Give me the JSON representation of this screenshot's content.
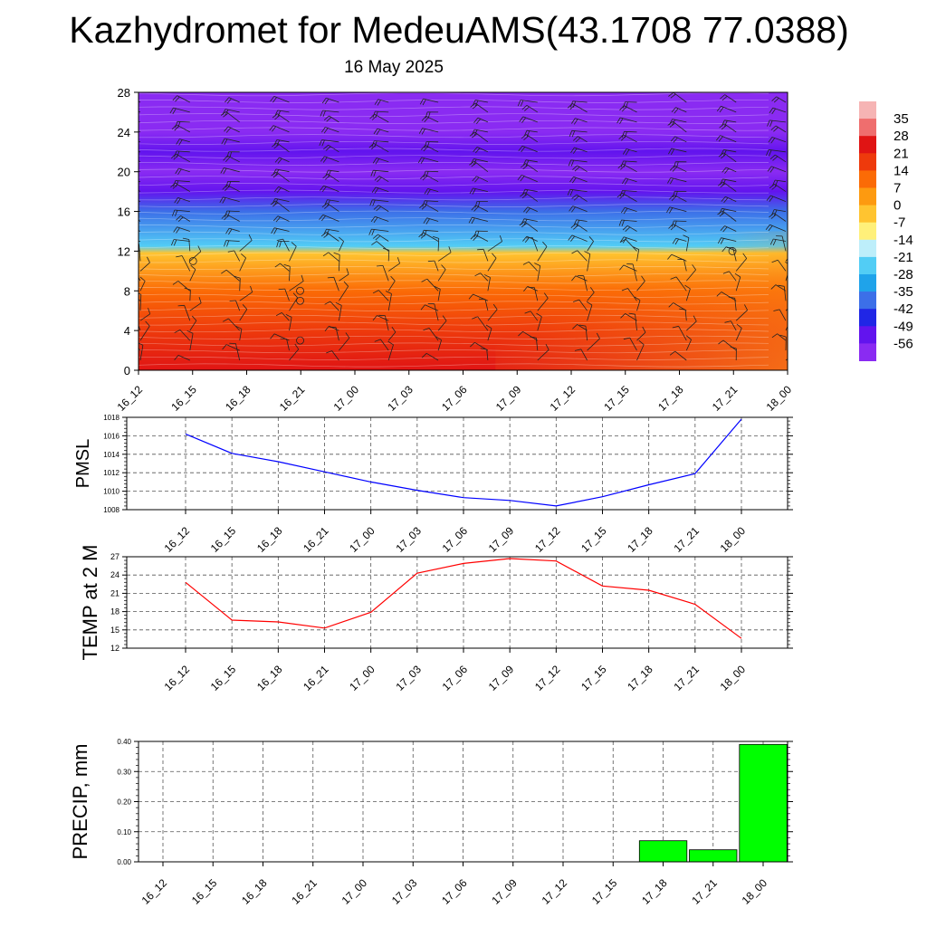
{
  "title": "Kazhydromet for MedeuAMS(43.1708 77.0388)",
  "subtitle": "16 May 2025",
  "time_labels": [
    "16_12",
    "16_15",
    "16_18",
    "16_21",
    "17_00",
    "17_03",
    "17_06",
    "17_09",
    "17_12",
    "17_15",
    "17_18",
    "17_21",
    "18_00"
  ],
  "colorbar": {
    "labels": [
      "35",
      "28",
      "21",
      "14",
      "7",
      "0",
      "-7",
      "-14",
      "-21",
      "-28",
      "-35",
      "-42",
      "-49",
      "-56"
    ],
    "colors": [
      "#f6b4b4",
      "#ef6e6e",
      "#e01414",
      "#ee3a0c",
      "#fb6b06",
      "#fd9a10",
      "#ffc430",
      "#fff07a",
      "#bdeefa",
      "#52cdf5",
      "#1fa3ea",
      "#3c6fe8",
      "#2026e6",
      "#6214ee",
      "#8a2bf2"
    ]
  },
  "chart_data": [
    {
      "type": "heatmap",
      "title": "",
      "xlabel": "",
      "ylabel": "",
      "x": [
        "16_12",
        "16_15",
        "16_18",
        "16_21",
        "17_00",
        "17_03",
        "17_06",
        "17_09",
        "17_12",
        "17_15",
        "17_18",
        "17_21",
        "18_00"
      ],
      "y_ticks": [
        "0",
        "4",
        "8",
        "12",
        "16",
        "20",
        "24",
        "28"
      ],
      "ylim": [
        0,
        28
      ],
      "colorbar_range": [
        -56,
        35
      ],
      "temperature_profile": [
        {
          "level": 0,
          "value": 24
        },
        {
          "level": 4,
          "value": 18
        },
        {
          "level": 8,
          "value": 7
        },
        {
          "level": 11.8,
          "value": -7
        },
        {
          "level": 12.5,
          "value": -21
        },
        {
          "level": 16,
          "value": -35
        },
        {
          "level": 18,
          "value": -49
        },
        {
          "level": 20,
          "value": -56
        },
        {
          "level": 22,
          "value": -49
        },
        {
          "level": 24,
          "value": -60
        },
        {
          "level": 28,
          "value": -60
        }
      ],
      "overlay": "wind barbs"
    },
    {
      "type": "line",
      "title": "",
      "ylabel": "PMSL",
      "categories": [
        "16_12",
        "16_15",
        "16_18",
        "16_21",
        "17_00",
        "17_03",
        "17_06",
        "17_09",
        "17_12",
        "17_15",
        "17_18",
        "17_21",
        "18_00"
      ],
      "y_ticks": [
        "1008",
        "1010",
        "1012",
        "1014",
        "1016",
        "1018"
      ],
      "ylim": [
        1008,
        1018
      ],
      "grid": true,
      "series": [
        {
          "color": "#0000ff",
          "values": [
            1016.2,
            1014.1,
            1013.2,
            1012.1,
            1011.0,
            1010.1,
            1009.3,
            1009.0,
            1008.4,
            1009.4,
            1010.7,
            1011.9,
            1017.8
          ]
        }
      ]
    },
    {
      "type": "line",
      "title": "",
      "ylabel": "TEMP at 2 M",
      "categories": [
        "16_12",
        "16_15",
        "16_18",
        "16_21",
        "17_00",
        "17_03",
        "17_06",
        "17_09",
        "17_12",
        "17_15",
        "17_18",
        "17_21",
        "18_00"
      ],
      "y_ticks": [
        "12",
        "15",
        "18",
        "21",
        "24",
        "27"
      ],
      "ylim": [
        12,
        27
      ],
      "grid": true,
      "series": [
        {
          "color": "#ff0000",
          "values": [
            22.8,
            16.6,
            16.3,
            15.3,
            17.9,
            24.3,
            25.9,
            26.7,
            26.3,
            22.2,
            21.5,
            19.2,
            13.6
          ]
        }
      ]
    },
    {
      "type": "bar",
      "title": "",
      "ylabel": "PRECIP, mm",
      "categories": [
        "16_12",
        "16_15",
        "16_18",
        "16_21",
        "17_00",
        "17_03",
        "17_06",
        "17_09",
        "17_12",
        "17_15",
        "17_18",
        "17_21",
        "18_00"
      ],
      "y_ticks": [
        "0.00",
        "0.10",
        "0.20",
        "0.30",
        "0.40"
      ],
      "ylim": [
        0,
        0.4
      ],
      "grid": true,
      "series": [
        {
          "color": "#00ff00",
          "values": [
            0,
            0,
            0,
            0,
            0,
            0,
            0,
            0,
            0,
            0,
            0.07,
            0.04,
            0.39
          ]
        }
      ]
    }
  ]
}
